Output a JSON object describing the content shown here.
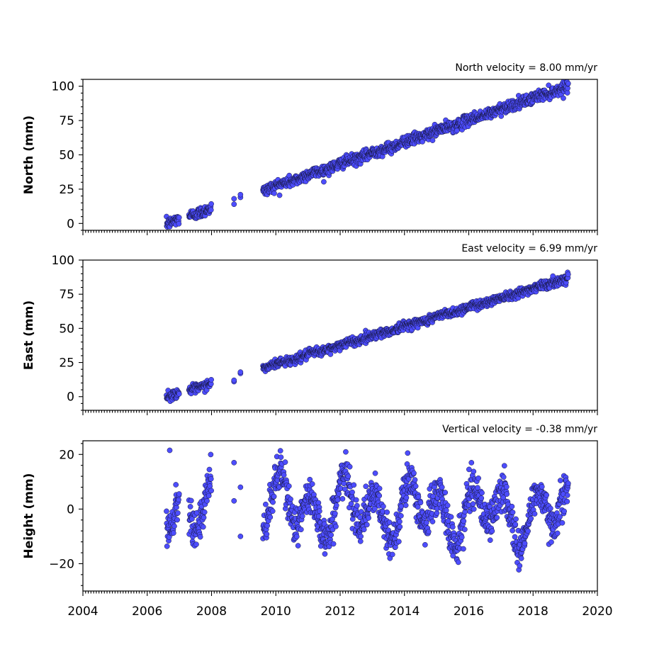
{
  "chart_data": [
    {
      "type": "scatter",
      "name": "north",
      "annotation": "North velocity = 8.00 mm/yr",
      "ylabel": "North (mm)",
      "xlim": [
        2004,
        2020
      ],
      "ylim": [
        -5,
        105
      ],
      "yticks": [
        0,
        25,
        50,
        75,
        100
      ],
      "xticks": [
        2004,
        2006,
        2008,
        2010,
        2012,
        2014,
        2016,
        2018,
        2020
      ],
      "show_xtick_labels": false,
      "marker_color": "#4d4dff",
      "trend": {
        "start_year": 2006.6,
        "end_year": 2019.1,
        "value_at_start": 0,
        "value_at_end": 100
      },
      "segments": [
        [
          2006.6,
          2007.0
        ],
        [
          2007.3,
          2008.0
        ],
        [
          2009.6,
          2019.1
        ]
      ],
      "sparse_points": [
        [
          2008.7,
          14
        ],
        [
          2008.7,
          18
        ],
        [
          2008.9,
          19
        ],
        [
          2008.9,
          21
        ]
      ],
      "noise": 2.0,
      "seasonal": 0.5
    },
    {
      "type": "scatter",
      "name": "east",
      "annotation": "East velocity = 6.99 mm/yr",
      "ylabel": "East (mm)",
      "xlim": [
        2004,
        2020
      ],
      "ylim": [
        -10,
        100
      ],
      "yticks": [
        0,
        25,
        50,
        75,
        100
      ],
      "xticks": [
        2004,
        2006,
        2008,
        2010,
        2012,
        2014,
        2016,
        2018,
        2020
      ],
      "show_xtick_labels": false,
      "marker_color": "#4d4dff",
      "trend": {
        "start_year": 2006.6,
        "end_year": 2019.1,
        "value_at_start": 0,
        "value_at_end": 87
      },
      "segments": [
        [
          2006.6,
          2007.0
        ],
        [
          2007.3,
          2008.0
        ],
        [
          2009.6,
          2019.1
        ]
      ],
      "sparse_points": [
        [
          2008.7,
          11
        ],
        [
          2008.7,
          12
        ],
        [
          2008.9,
          17
        ],
        [
          2008.9,
          18
        ]
      ],
      "noise": 1.6,
      "seasonal": 0.5
    },
    {
      "type": "scatter",
      "name": "height",
      "annotation": "Vertical velocity = -0.38 mm/yr",
      "ylabel": "Height (mm)",
      "xlim": [
        2004,
        2020
      ],
      "ylim": [
        -30,
        25
      ],
      "yticks": [
        -20,
        0,
        20
      ],
      "xticks": [
        2004,
        2006,
        2008,
        2010,
        2012,
        2014,
        2016,
        2018,
        2020
      ],
      "show_xtick_labels": true,
      "marker_color": "#4d4dff",
      "trend": {
        "start_year": 2006.6,
        "end_year": 2019.1,
        "value_at_start": 2,
        "value_at_end": -2
      },
      "segments": [
        [
          2006.6,
          2007.0
        ],
        [
          2007.3,
          2008.0
        ],
        [
          2009.6,
          2019.1
        ]
      ],
      "sparse_points": [
        [
          2008.7,
          17
        ],
        [
          2008.7,
          3
        ],
        [
          2008.9,
          8
        ],
        [
          2008.9,
          -10
        ],
        [
          2014.1,
          20.5
        ],
        [
          2006.7,
          21.5
        ]
      ],
      "noise": 3.5,
      "seasonal": 8.0
    }
  ]
}
